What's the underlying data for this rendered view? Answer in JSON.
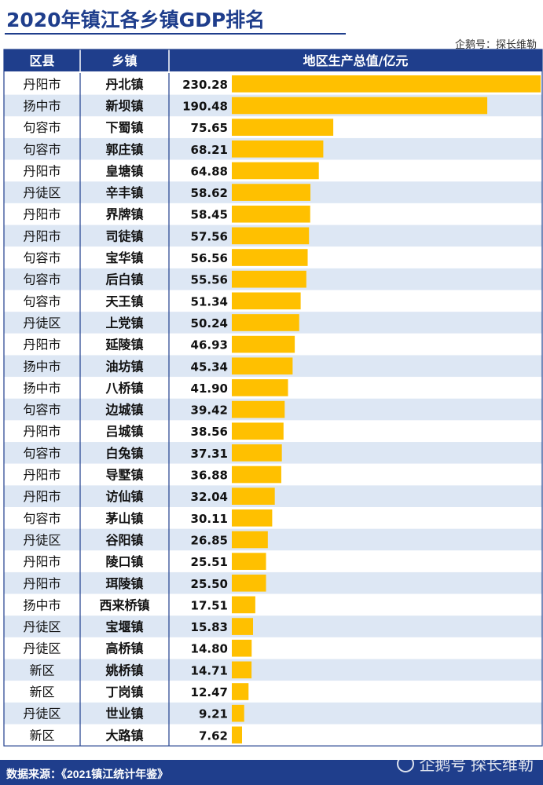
{
  "header": {
    "title": "2020年镇江各乡镇GDP排名",
    "credit": "企鹅号：探长维勒"
  },
  "footer": {
    "source": "数据来源：《2021镇江统计年鉴》",
    "watermark": "企鹅号 探长维勒"
  },
  "colors": {
    "header_bg": "#1f3e8c",
    "row_alt": "#dde7f4",
    "bar": "#ffc000"
  },
  "chart_data": {
    "type": "table",
    "columns": [
      "区县",
      "乡镇",
      "地区生产总值/亿元"
    ],
    "xlim": [
      0,
      230.28
    ],
    "rows": [
      {
        "district": "丹阳市",
        "town": "丹北镇",
        "value": 230.28
      },
      {
        "district": "扬中市",
        "town": "新坝镇",
        "value": 190.48
      },
      {
        "district": "句容市",
        "town": "下蜀镇",
        "value": 75.65
      },
      {
        "district": "句容市",
        "town": "郭庄镇",
        "value": 68.21
      },
      {
        "district": "丹阳市",
        "town": "皇塘镇",
        "value": 64.88
      },
      {
        "district": "丹徒区",
        "town": "辛丰镇",
        "value": 58.62
      },
      {
        "district": "丹阳市",
        "town": "界牌镇",
        "value": 58.45
      },
      {
        "district": "丹阳市",
        "town": "司徒镇",
        "value": 57.56
      },
      {
        "district": "句容市",
        "town": "宝华镇",
        "value": 56.56
      },
      {
        "district": "句容市",
        "town": "后白镇",
        "value": 55.56
      },
      {
        "district": "句容市",
        "town": "天王镇",
        "value": 51.34
      },
      {
        "district": "丹徒区",
        "town": "上党镇",
        "value": 50.24
      },
      {
        "district": "丹阳市",
        "town": "延陵镇",
        "value": 46.93
      },
      {
        "district": "扬中市",
        "town": "油坊镇",
        "value": 45.34
      },
      {
        "district": "扬中市",
        "town": "八桥镇",
        "value": 41.9
      },
      {
        "district": "句容市",
        "town": "边城镇",
        "value": 39.42
      },
      {
        "district": "丹阳市",
        "town": "吕城镇",
        "value": 38.56
      },
      {
        "district": "句容市",
        "town": "白兔镇",
        "value": 37.31
      },
      {
        "district": "丹阳市",
        "town": "导墅镇",
        "value": 36.88
      },
      {
        "district": "丹阳市",
        "town": "访仙镇",
        "value": 32.04
      },
      {
        "district": "句容市",
        "town": "茅山镇",
        "value": 30.11
      },
      {
        "district": "丹徒区",
        "town": "谷阳镇",
        "value": 26.85
      },
      {
        "district": "丹阳市",
        "town": "陵口镇",
        "value": 25.51
      },
      {
        "district": "丹阳市",
        "town": "珥陵镇",
        "value": 25.5
      },
      {
        "district": "扬中市",
        "town": "西来桥镇",
        "value": 17.51
      },
      {
        "district": "丹徒区",
        "town": "宝堰镇",
        "value": 15.83
      },
      {
        "district": "丹徒区",
        "town": "高桥镇",
        "value": 14.8
      },
      {
        "district": "新区",
        "town": "姚桥镇",
        "value": 14.71
      },
      {
        "district": "新区",
        "town": "丁岗镇",
        "value": 12.47
      },
      {
        "district": "丹徒区",
        "town": "世业镇",
        "value": 9.21
      },
      {
        "district": "新区",
        "town": "大路镇",
        "value": 7.62
      }
    ]
  }
}
